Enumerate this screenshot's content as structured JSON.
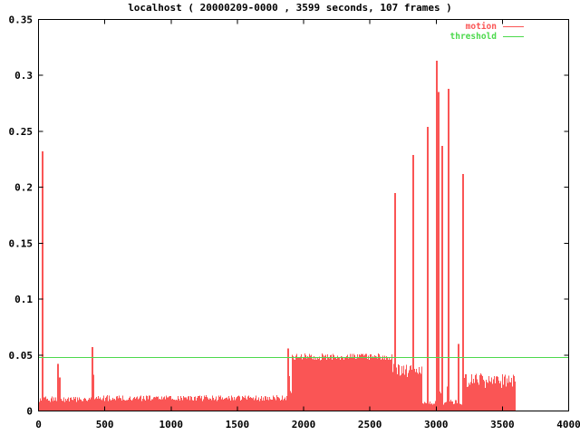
{
  "chart_data": {
    "type": "area",
    "plot_style": "impulses",
    "title": "localhost ( 20000209-0000 , 3599 seconds, 107 frames )",
    "xlabel": "",
    "ylabel": "",
    "xlim": [
      0,
      4000
    ],
    "ylim": [
      0,
      0.35
    ],
    "x_ticks": [
      "0",
      "500",
      "1000",
      "1500",
      "2000",
      "2500",
      "3000",
      "3500",
      "4000"
    ],
    "y_ticks": [
      "0",
      "0.05",
      "0.1",
      "0.15",
      "0.2",
      "0.25",
      "0.3",
      "0.35"
    ],
    "grid": false,
    "legend_position": "top-right-inside",
    "legend": [
      {
        "name": "motion",
        "color": "#fa5555"
      },
      {
        "name": "threshold",
        "color": "#4cd94c"
      }
    ],
    "threshold_value": 0.048,
    "x_end": 3599,
    "series_segments": [
      {
        "from": 0,
        "to": 140,
        "base": 0.006,
        "noise": 0.007
      },
      {
        "from": 140,
        "to": 162,
        "base": 0.018,
        "noise": 0.014
      },
      {
        "from": 162,
        "to": 398,
        "base": 0.006,
        "noise": 0.007
      },
      {
        "from": 398,
        "to": 420,
        "base": 0.02,
        "noise": 0.018
      },
      {
        "from": 420,
        "to": 1878,
        "base": 0.007,
        "noise": 0.007
      },
      {
        "from": 1878,
        "to": 1892,
        "base": 0.01,
        "noise": 0.03
      },
      {
        "from": 1892,
        "to": 1908,
        "base": 0.006,
        "noise": 0.012
      },
      {
        "from": 1908,
        "to": 2665,
        "base": 0.0435,
        "noise": 0.008
      },
      {
        "from": 2665,
        "to": 2800,
        "base": 0.025,
        "noise": 0.018
      },
      {
        "from": 2800,
        "to": 2890,
        "base": 0.028,
        "noise": 0.014
      },
      {
        "from": 2890,
        "to": 2995,
        "base": 0.004,
        "noise": 0.005
      },
      {
        "from": 2995,
        "to": 3048,
        "base": 0.01,
        "noise": 0.012
      },
      {
        "from": 3048,
        "to": 3075,
        "base": 0.004,
        "noise": 0.005
      },
      {
        "from": 3075,
        "to": 3100,
        "base": 0.015,
        "noise": 0.02
      },
      {
        "from": 3100,
        "to": 3190,
        "base": 0.004,
        "noise": 0.006
      },
      {
        "from": 3190,
        "to": 3212,
        "base": 0.02,
        "noise": 0.015
      },
      {
        "from": 3212,
        "to": 3599,
        "base": 0.016,
        "noise": 0.018
      }
    ],
    "spikes": [
      {
        "x": 30,
        "value": 0.232
      },
      {
        "x": 150,
        "value": 0.042
      },
      {
        "x": 409,
        "value": 0.057
      },
      {
        "x": 1886,
        "value": 0.056
      },
      {
        "x": 2690,
        "value": 0.195
      },
      {
        "x": 2826,
        "value": 0.229
      },
      {
        "x": 2936,
        "value": 0.254
      },
      {
        "x": 3002,
        "value": 0.313
      },
      {
        "x": 3022,
        "value": 0.285
      },
      {
        "x": 3046,
        "value": 0.237
      },
      {
        "x": 3092,
        "value": 0.288
      },
      {
        "x": 3166,
        "value": 0.06
      },
      {
        "x": 3202,
        "value": 0.212
      }
    ]
  },
  "colors": {
    "motion": "#fa5555",
    "threshold": "#4cd94c",
    "axis": "#000000",
    "background": "#ffffff"
  }
}
